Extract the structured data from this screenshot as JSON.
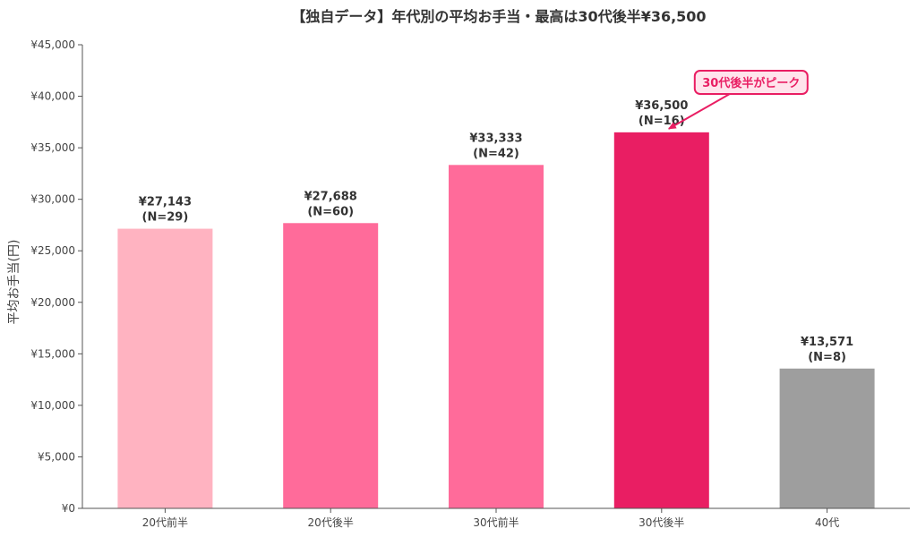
{
  "chart_data": {
    "type": "bar",
    "title": "【独自データ】年代別の平均お手当・最高は30代後半¥36,500",
    "xlabel": "",
    "ylabel": "平均お手当(円)",
    "ylim": [
      0,
      45000
    ],
    "yticks": [
      "¥0",
      "¥5,000",
      "¥10,000",
      "¥15,000",
      "¥20,000",
      "¥25,000",
      "¥30,000",
      "¥35,000",
      "¥40,000",
      "¥45,000"
    ],
    "ytick_values": [
      0,
      5000,
      10000,
      15000,
      20000,
      25000,
      30000,
      35000,
      40000,
      45000
    ],
    "categories": [
      "20代前半",
      "20代後半",
      "30代前半",
      "30代後半",
      "40代"
    ],
    "values": [
      27143,
      27688,
      33333,
      36500,
      13571
    ],
    "value_labels": [
      "¥27,143",
      "¥27,688",
      "¥33,333",
      "¥36,500",
      "¥13,571"
    ],
    "n_labels": [
      "(N=29)",
      "(N=60)",
      "(N=42)",
      "(N=16)",
      "(N=8)"
    ],
    "bar_colors": [
      "#FFB3C1",
      "#FF6B9A",
      "#FF6B9A",
      "#E91E63",
      "#9E9E9E"
    ],
    "grid": false,
    "annotation": {
      "text": "30代後半がピーク",
      "target_index": 3,
      "color": "#E91E63",
      "background": "#FFE4EC"
    }
  }
}
